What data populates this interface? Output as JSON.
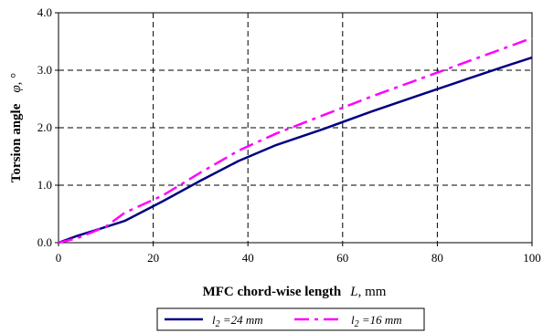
{
  "chart_data": {
    "type": "line",
    "xlabel": "MFC chord-wise length",
    "xlabel_symbol": "L",
    "xlabel_unit": ", mm",
    "ylabel": "Torsion angle",
    "ylabel_symbol": "φ",
    "ylabel_unit": ", °",
    "xlim": [
      0,
      100
    ],
    "ylim": [
      0,
      4.0
    ],
    "x_ticks": [
      "0",
      "20",
      "40",
      "60",
      "80",
      "100"
    ],
    "y_ticks": [
      "0.0",
      "1.0",
      "2.0",
      "3.0",
      "4.0"
    ],
    "grid": "dashed",
    "legend_position": "bottom",
    "series": [
      {
        "name": "l2 = 24 mm",
        "legend_label": {
          "symbol": "l",
          "sub": "2",
          "rest": " =24 mm"
        },
        "color": "#000080",
        "style": "solid",
        "x": [
          0,
          4,
          8,
          14,
          22,
          30,
          38,
          46,
          56,
          66,
          76,
          86,
          94,
          100
        ],
        "y": [
          0,
          0.12,
          0.22,
          0.38,
          0.72,
          1.08,
          1.42,
          1.7,
          1.98,
          2.28,
          2.56,
          2.84,
          3.06,
          3.22
        ]
      },
      {
        "name": "l2 = 16 mm",
        "legend_label": {
          "symbol": "l",
          "sub": "2",
          "rest": " =16 mm"
        },
        "color": "#FF00FF",
        "style": "dashdot",
        "x": [
          0,
          4,
          10,
          14,
          22,
          30,
          38,
          46,
          56,
          66,
          76,
          86,
          94,
          100
        ],
        "y": [
          0,
          0.08,
          0.28,
          0.52,
          0.82,
          1.22,
          1.6,
          1.9,
          2.22,
          2.54,
          2.84,
          3.14,
          3.38,
          3.56
        ]
      }
    ]
  }
}
